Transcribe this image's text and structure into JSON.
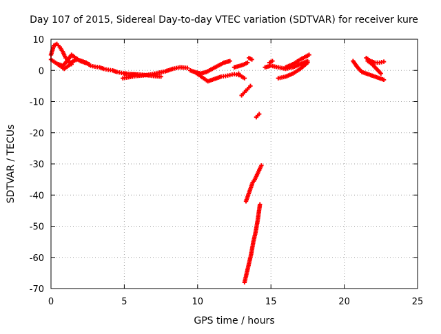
{
  "chart_data": {
    "type": "scatter",
    "title": "Day 107 of 2015, Sidereal Day-to-day VTEC variation (SDTVAR) for receiver kure",
    "xlabel": "GPS time / hours",
    "ylabel": "SDTVAR / TECUs",
    "xlim": [
      0,
      25
    ],
    "ylim": [
      -70,
      10
    ],
    "xticks": [
      0,
      5,
      10,
      15,
      20,
      25
    ],
    "yticks": [
      10,
      0,
      -10,
      -20,
      -30,
      -40,
      -50,
      -60,
      -70
    ],
    "grid": true,
    "marker": "plus",
    "color": "#ff0000",
    "series": [
      {
        "x": [
          0.0,
          0.2,
          0.4,
          0.6,
          0.8,
          1.0,
          1.2,
          1.4
        ],
        "y": [
          5,
          8,
          8.5,
          7.5,
          6,
          4,
          3,
          2
        ]
      },
      {
        "x": [
          0.0,
          0.3,
          0.6,
          0.9,
          1.2,
          1.5,
          1.8,
          2.1,
          2.4,
          2.7,
          3.0,
          3.3,
          3.6,
          3.9,
          4.2,
          4.5,
          4.8,
          5.1,
          5.4,
          5.7,
          6.0
        ],
        "y": [
          3.5,
          2.5,
          1.5,
          0.5,
          1.5,
          3,
          3.5,
          3,
          2.5,
          1.5,
          1.2,
          1,
          0.5,
          0.2,
          0,
          -0.5,
          -0.8,
          -1,
          -1.2,
          -1.3,
          -1.5
        ]
      },
      {
        "x": [
          0.5,
          0.8,
          1.1,
          1.4,
          1.7,
          2.0,
          2.3,
          2.6
        ],
        "y": [
          2,
          1.5,
          3,
          5,
          4,
          3,
          2.5,
          2
        ]
      },
      {
        "x": [
          4.9,
          5.3,
          5.8,
          6.3,
          6.8,
          7.3,
          7.8,
          8.3,
          8.8,
          9.3
        ],
        "y": [
          -2.5,
          -2.2,
          -1.8,
          -1.6,
          -1.3,
          -0.8,
          -0.3,
          0.5,
          1,
          0.8
        ]
      },
      {
        "x": [
          5.0,
          5.5,
          6.0,
          6.5,
          7.0,
          7.5
        ],
        "y": [
          -1,
          -1.2,
          -1.3,
          -1.5,
          -1.8,
          -2
        ]
      },
      {
        "x": [
          9.5,
          9.8,
          10.1,
          10.4,
          10.7,
          11.0,
          11.3,
          11.6,
          11.9,
          12.2,
          12.5,
          12.8
        ],
        "y": [
          0,
          -0.5,
          -1.5,
          -2.5,
          -3.5,
          -3,
          -2.5,
          -2,
          -1.8,
          -1.5,
          -1.2,
          -1.5
        ]
      },
      {
        "x": [
          9.8,
          10.2,
          10.6,
          11.0,
          11.4,
          11.8,
          12.2
        ],
        "y": [
          -0.5,
          -1,
          -0.5,
          0.5,
          1.5,
          2.5,
          3
        ]
      },
      {
        "x": [
          12.5,
          12.9,
          13.2,
          13.4
        ],
        "y": [
          1,
          1.5,
          2,
          2.5
        ]
      },
      {
        "x": [
          12.8,
          13.0,
          13.2
        ],
        "y": [
          -1,
          -2,
          -2.5
        ]
      },
      {
        "x": [
          13.0,
          13.2,
          13.4,
          13.6
        ],
        "y": [
          -8,
          -7,
          -6,
          -5
        ]
      },
      {
        "x": [
          13.5,
          13.7
        ],
        "y": [
          4,
          3.5
        ]
      },
      {
        "x": [
          14.0,
          14.2
        ],
        "y": [
          -15,
          -14
        ]
      },
      {
        "x": [
          13.3,
          13.45,
          13.6,
          13.75,
          13.9,
          14.05,
          14.2,
          14.35
        ],
        "y": [
          -42,
          -40,
          -38,
          -36,
          -35,
          -33.5,
          -32,
          -30.5
        ]
      },
      {
        "x": [
          13.2,
          13.35,
          13.5,
          13.65,
          13.8,
          13.95,
          14.1,
          14.25
        ],
        "y": [
          -68,
          -65,
          -62,
          -59,
          -55,
          -52,
          -48,
          -43
        ]
      },
      {
        "x": [
          14.6,
          15.0,
          15.5,
          16.0,
          16.5,
          17.0,
          17.5
        ],
        "y": [
          1,
          1.5,
          1,
          0.5,
          1,
          2,
          3
        ]
      },
      {
        "x": [
          15.5,
          16.0,
          16.5,
          17.0,
          17.5
        ],
        "y": [
          -2.5,
          -2,
          -1,
          0.5,
          2.5
        ]
      },
      {
        "x": [
          16.0,
          16.5,
          17.0,
          17.6
        ],
        "y": [
          1,
          2,
          3.5,
          5
        ]
      },
      {
        "x": [
          14.9,
          15.1
        ],
        "y": [
          2.5,
          3
        ]
      },
      {
        "x": [
          20.6,
          20.9,
          21.2,
          21.5,
          21.8,
          22.1,
          22.4,
          22.7
        ],
        "y": [
          3,
          1,
          -0.5,
          -1,
          -1.5,
          -2,
          -2.5,
          -3
        ]
      },
      {
        "x": [
          21.5,
          21.8,
          22.1,
          22.4,
          22.7
        ],
        "y": [
          4,
          3,
          2.5,
          2.5,
          2.8
        ]
      },
      {
        "x": [
          21.6,
          21.9,
          22.2,
          22.5
        ],
        "y": [
          3,
          2,
          0.5,
          -1
        ]
      }
    ]
  }
}
